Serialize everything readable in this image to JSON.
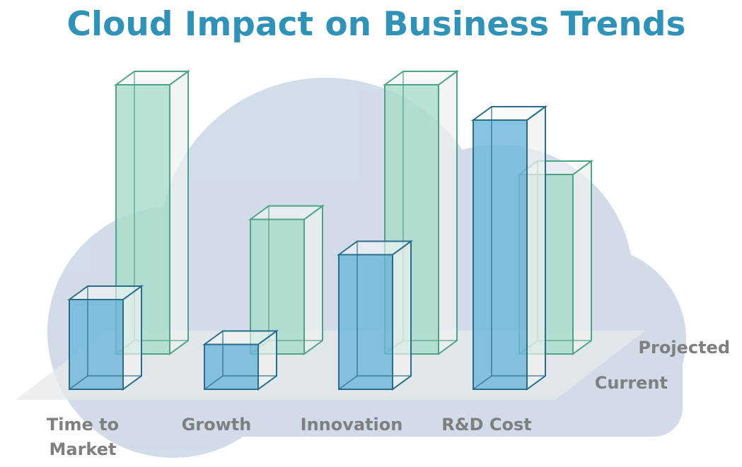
{
  "chart_data": {
    "type": "bar",
    "title": "Cloud Impact on Business Trends",
    "categories": [
      "Time to\nMarket",
      "Growth",
      "Innovation",
      "R&D Cost"
    ],
    "series": [
      {
        "name": "Current",
        "values": [
          1.0,
          0.5,
          1.5,
          3.0
        ]
      },
      {
        "name": "Projected",
        "values": [
          3.0,
          1.5,
          3.0,
          2.0
        ]
      }
    ],
    "ylim": [
      0,
      3.2
    ],
    "legend": "right",
    "grid": false,
    "colors": {
      "current_fill": "#6fb6da",
      "current_stroke": "#2a6d8b",
      "projected_fill": "#a9dccc",
      "projected_stroke": "#4fa386",
      "cloud": "#cfdbe7",
      "floor": "#e6e9ec",
      "title": "#3192b8",
      "label": "#7f7f7f"
    }
  }
}
